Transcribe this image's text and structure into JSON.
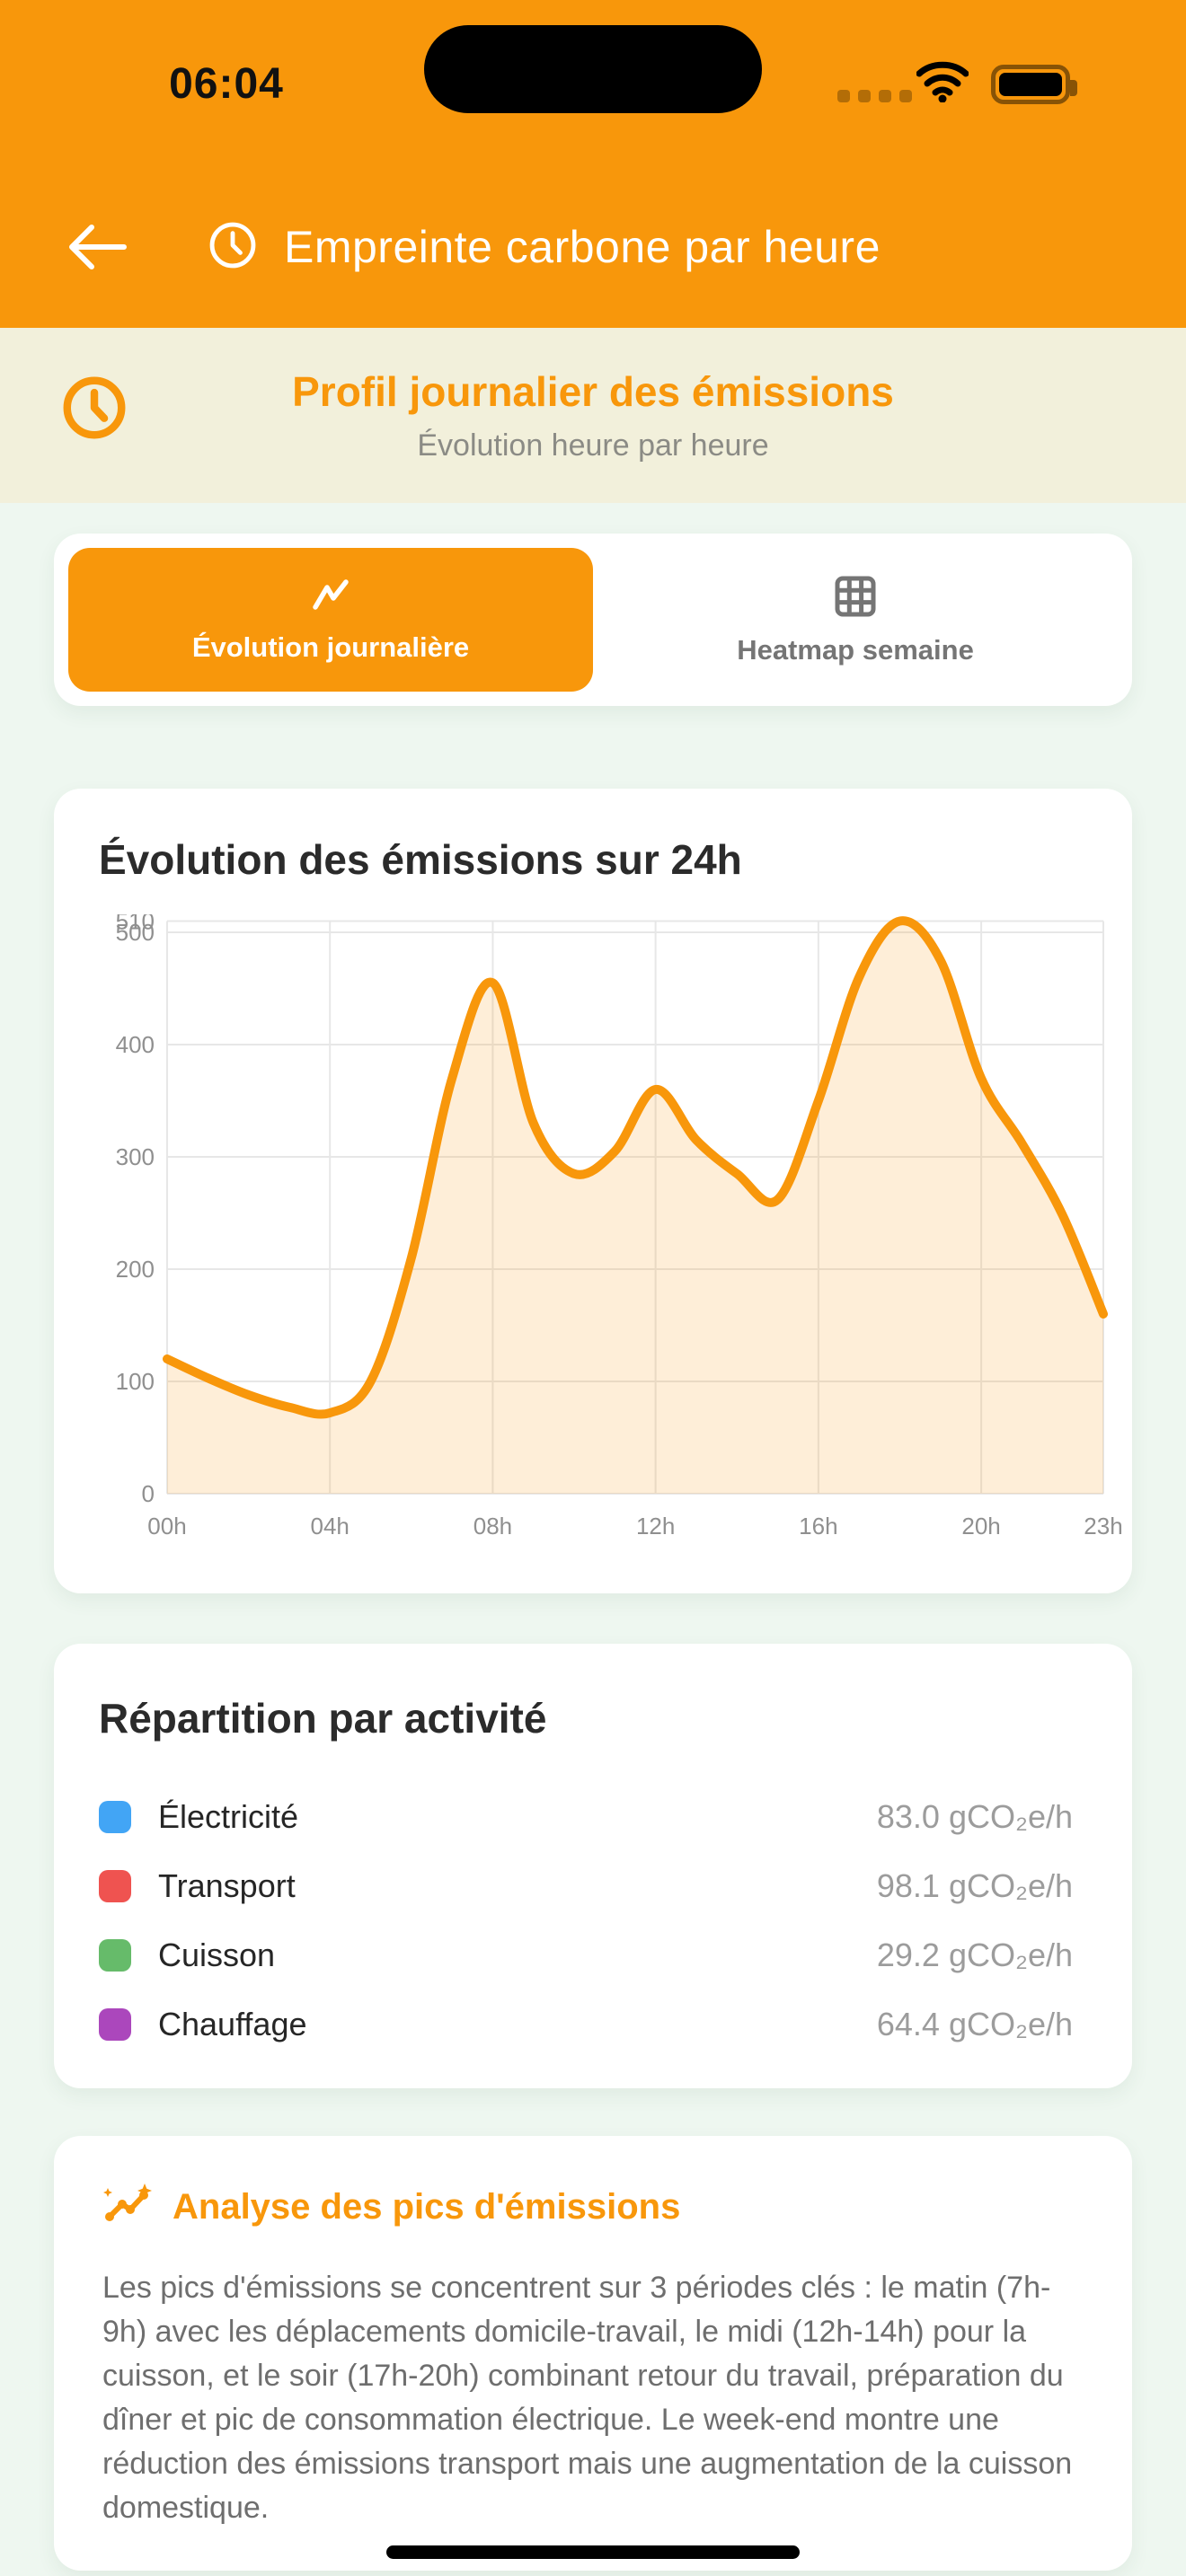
{
  "colors": {
    "accent_orange": "#F8970B",
    "banner_bg": "#F2F0DB",
    "page_bg": "#EEF7F0",
    "card_bg": "#FFFFFF",
    "muted_text": "#9C9C9C",
    "body_text": "#6E6E6E"
  },
  "status_bar": {
    "time": "06:04"
  },
  "header": {
    "title": "Empreinte carbone par heure"
  },
  "banner": {
    "title": "Profil journalier des émissions",
    "subtitle": "Évolution heure par heure"
  },
  "tabs": [
    {
      "label": "Évolution journalière",
      "icon": "trending-line-icon",
      "active": true
    },
    {
      "label": "Heatmap semaine",
      "icon": "grid-icon",
      "active": false
    }
  ],
  "chart_card": {
    "title": "Évolution des émissions sur 24h"
  },
  "chart_data": {
    "type": "area",
    "title": "Évolution des émissions sur 24h",
    "x": [
      "00h",
      "01h",
      "02h",
      "03h",
      "04h",
      "05h",
      "06h",
      "07h",
      "08h",
      "09h",
      "10h",
      "11h",
      "12h",
      "13h",
      "14h",
      "15h",
      "16h",
      "17h",
      "18h",
      "19h",
      "20h",
      "21h",
      "22h",
      "23h"
    ],
    "values": [
      120,
      103,
      88,
      77,
      72,
      100,
      210,
      370,
      455,
      330,
      285,
      305,
      360,
      315,
      285,
      262,
      350,
      460,
      510,
      475,
      370,
      312,
      248,
      160
    ],
    "x_tick_labels": [
      "00h",
      "04h",
      "08h",
      "12h",
      "16h",
      "20h",
      "23h"
    ],
    "x_tick_hours": [
      0,
      4,
      8,
      12,
      16,
      20,
      23
    ],
    "y_ticks": [
      0,
      100,
      200,
      300,
      400,
      500,
      510
    ],
    "ylim": [
      0,
      510
    ],
    "xlabel": "",
    "ylabel": "",
    "grid": true,
    "legend_position": "none",
    "line_color": "#F8970B",
    "fill_color": "rgba(248,151,11,0.16)",
    "grid_color": "#E7E7E7",
    "tick_color": "#8F8F8F"
  },
  "breakdown": {
    "title": "Répartition par activité",
    "items": [
      {
        "label": "Électricité",
        "value_text": "83.0 gCO₂e/h",
        "color": "#42A5F5"
      },
      {
        "label": "Transport",
        "value_text": "98.1 gCO₂e/h",
        "color": "#EF5350"
      },
      {
        "label": "Cuisson",
        "value_text": "29.2 gCO₂e/h",
        "color": "#66BB6A"
      },
      {
        "label": "Chauffage",
        "value_text": "64.4 gCO₂e/h",
        "color": "#AB47BC"
      }
    ]
  },
  "analysis": {
    "title": "Analyse des pics d'émissions",
    "body": "Les pics d'émissions se concentrent sur 3 périodes clés : le matin (7h-9h) avec les déplacements domicile-travail, le midi (12h-14h) pour la cuisson, et le soir (17h-20h) combinant retour du travail, préparation du dîner et pic de consommation électrique. Le week-end montre une réduction des émissions transport mais une augmentation de la cuisson domestique."
  }
}
